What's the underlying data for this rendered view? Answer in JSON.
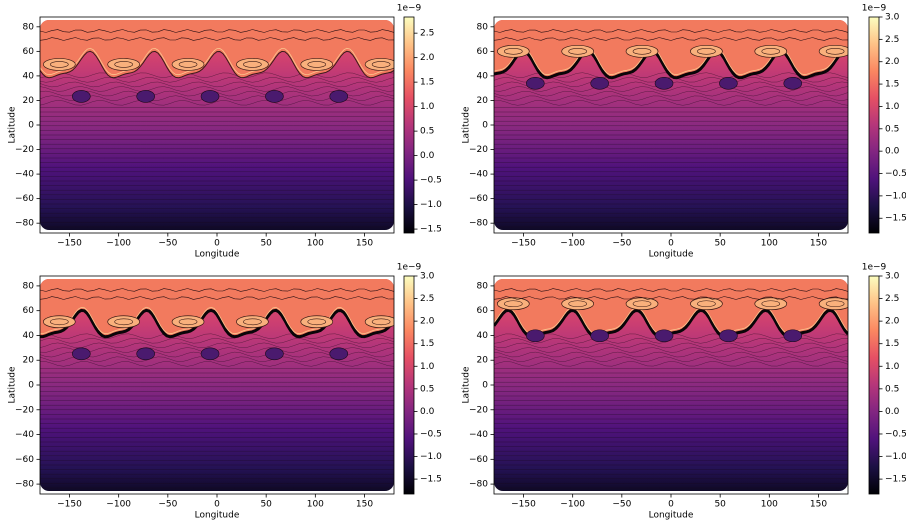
{
  "chart_data": [
    {
      "type": "contour",
      "xlabel": "Longitude",
      "ylabel": "Latitude",
      "colormap": "magma",
      "xlim": [
        -180,
        180
      ],
      "ylim": [
        -88,
        88
      ],
      "xticks": [
        {
          "value": -150,
          "label": "−150"
        },
        {
          "value": -100,
          "label": "−100"
        },
        {
          "value": -50,
          "label": "−50"
        },
        0,
        50,
        100,
        150
      ],
      "yticks": [
        {
          "value": -80,
          "label": "−80"
        },
        {
          "value": -60,
          "label": "−60"
        },
        {
          "value": -40,
          "label": "−40"
        },
        {
          "value": -20,
          "label": "−20"
        },
        0,
        20,
        40,
        60,
        80
      ],
      "colorbar": {
        "lim": [
          -1.58,
          2.83
        ],
        "offset_label": "1e−9",
        "ticks": [
          {
            "value": -1.5,
            "label": "−1.5"
          },
          {
            "value": -1.0,
            "label": "−1.0"
          },
          {
            "value": -0.5,
            "label": "−0.5"
          },
          {
            "value": 0.0,
            "label": "0.0"
          },
          0.5,
          {
            "value": 1.0,
            "label": "1.0"
          },
          1.5,
          {
            "value": 2.0,
            "label": "2.0"
          },
          2.5
        ]
      }
    },
    {
      "type": "contour",
      "xlabel": "Longitude",
      "ylabel": "Latitude",
      "colormap": "magma",
      "xlim": [
        -180,
        180
      ],
      "ylim": [
        -88,
        88
      ],
      "xticks": [
        {
          "value": -150,
          "label": "−150"
        },
        {
          "value": -100,
          "label": "−100"
        },
        {
          "value": -50,
          "label": "−50"
        },
        0,
        50,
        100,
        150
      ],
      "yticks": [
        {
          "value": -80,
          "label": "−80"
        },
        {
          "value": -60,
          "label": "−60"
        },
        {
          "value": -40,
          "label": "−40"
        },
        {
          "value": -20,
          "label": "−20"
        },
        0,
        20,
        40,
        60,
        80
      ],
      "colorbar": {
        "lim": [
          -1.83,
          3.0
        ],
        "offset_label": "1e−9",
        "ticks": [
          {
            "value": -1.5,
            "label": "−1.5"
          },
          {
            "value": -1.0,
            "label": "−1.0"
          },
          {
            "value": -0.5,
            "label": "−0.5"
          },
          {
            "value": 0.0,
            "label": "0.0"
          },
          0.5,
          {
            "value": 1.0,
            "label": "1.0"
          },
          1.5,
          {
            "value": 2.0,
            "label": "2.0"
          },
          2.5,
          {
            "value": 3.0,
            "label": "3.0"
          }
        ]
      }
    },
    {
      "type": "contour",
      "xlabel": "Longitude",
      "ylabel": "Latitude",
      "colormap": "magma",
      "xlim": [
        -180,
        180
      ],
      "ylim": [
        -88,
        88
      ],
      "xticks": [
        {
          "value": -150,
          "label": "−150"
        },
        {
          "value": -100,
          "label": "−100"
        },
        {
          "value": -50,
          "label": "−50"
        },
        0,
        50,
        100,
        150
      ],
      "yticks": [
        {
          "value": -80,
          "label": "−80"
        },
        {
          "value": -60,
          "label": "−60"
        },
        {
          "value": -40,
          "label": "−40"
        },
        {
          "value": -20,
          "label": "−20"
        },
        0,
        20,
        40,
        60,
        80
      ],
      "colorbar": {
        "lim": [
          -1.83,
          3.0
        ],
        "offset_label": "1e−9",
        "ticks": [
          {
            "value": -1.5,
            "label": "−1.5"
          },
          {
            "value": -1.0,
            "label": "−1.0"
          },
          {
            "value": -0.5,
            "label": "−0.5"
          },
          {
            "value": 0.0,
            "label": "0.0"
          },
          0.5,
          {
            "value": 1.0,
            "label": "1.0"
          },
          1.5,
          {
            "value": 2.0,
            "label": "2.0"
          },
          2.5,
          {
            "value": 3.0,
            "label": "3.0"
          }
        ]
      }
    },
    {
      "type": "contour",
      "xlabel": "Longitude",
      "ylabel": "Latitude",
      "colormap": "magma",
      "xlim": [
        -180,
        180
      ],
      "ylim": [
        -88,
        88
      ],
      "xticks": [
        {
          "value": -150,
          "label": "−150"
        },
        {
          "value": -100,
          "label": "−100"
        },
        {
          "value": -50,
          "label": "−50"
        },
        0,
        50,
        100,
        150
      ],
      "yticks": [
        {
          "value": -80,
          "label": "−80"
        },
        {
          "value": -60,
          "label": "−60"
        },
        {
          "value": -40,
          "label": "−40"
        },
        {
          "value": -20,
          "label": "−20"
        },
        0,
        20,
        40,
        60,
        80
      ],
      "colorbar": {
        "lim": [
          -1.83,
          3.0
        ],
        "offset_label": "1e−9",
        "ticks": [
          {
            "value": -1.5,
            "label": "−1.5"
          },
          {
            "value": -1.0,
            "label": "−1.0"
          },
          {
            "value": -0.5,
            "label": "−0.5"
          },
          {
            "value": 0.0,
            "label": "0.0"
          },
          0.5,
          {
            "value": 1.0,
            "label": "1.0"
          },
          1.5,
          {
            "value": 2.0,
            "label": "2.0"
          },
          2.5,
          {
            "value": 3.0,
            "label": "3.0"
          }
        ]
      }
    }
  ]
}
